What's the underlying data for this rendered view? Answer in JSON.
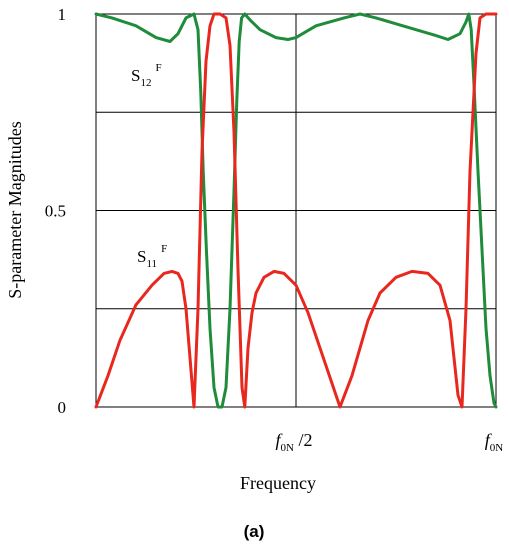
{
  "chart_data": {
    "type": "line",
    "xlabel": "Frequency",
    "ylabel": "S-parameter Magnitudes",
    "ylim": [
      0,
      1
    ],
    "xlim": [
      0,
      1
    ],
    "yticks": [
      {
        "value": 0,
        "label": "0"
      },
      {
        "value": 0.5,
        "label": "0.5"
      },
      {
        "value": 1,
        "label": "1"
      }
    ],
    "xticks": [
      {
        "value": 0.5,
        "main": "f",
        "sub": "0N",
        "suffix": " /2"
      },
      {
        "value": 1.0,
        "main": "f",
        "sub": "0N",
        "suffix": ""
      }
    ],
    "grid": true,
    "caption": "(a)",
    "colors": {
      "S12": "#1e8c3a",
      "S11": "#e8281e"
    },
    "annotations": {
      "s12": {
        "main": "S",
        "sub": "12",
        "sup": "F"
      },
      "s11": {
        "main": "S",
        "sub": "11",
        "sup": "F"
      }
    },
    "series": [
      {
        "key": "S12",
        "x": [
          0.0,
          0.04,
          0.1,
          0.15,
          0.185,
          0.205,
          0.225,
          0.245,
          0.255,
          0.262,
          0.268,
          0.276,
          0.285,
          0.295,
          0.305,
          0.315,
          0.325,
          0.335,
          0.345,
          0.352,
          0.358,
          0.364,
          0.372,
          0.385,
          0.41,
          0.45,
          0.48,
          0.5,
          0.55,
          0.62,
          0.66,
          0.7,
          0.75,
          0.8,
          0.85,
          0.88,
          0.91,
          0.925,
          0.932,
          0.938,
          0.945,
          0.955,
          0.965,
          0.975,
          0.985,
          0.995,
          1.0
        ],
        "y": [
          1.0,
          0.99,
          0.97,
          0.94,
          0.93,
          0.95,
          0.99,
          1.0,
          0.96,
          0.8,
          0.6,
          0.4,
          0.2,
          0.05,
          0.0,
          0.0,
          0.05,
          0.25,
          0.55,
          0.78,
          0.93,
          0.99,
          1.0,
          0.985,
          0.96,
          0.94,
          0.935,
          0.94,
          0.97,
          0.99,
          1.0,
          0.99,
          0.975,
          0.96,
          0.945,
          0.935,
          0.95,
          0.98,
          1.0,
          0.96,
          0.82,
          0.6,
          0.4,
          0.2,
          0.08,
          0.01,
          0.0
        ]
      },
      {
        "key": "S11",
        "x": [
          0.0,
          0.03,
          0.06,
          0.1,
          0.14,
          0.17,
          0.19,
          0.205,
          0.215,
          0.225,
          0.245,
          0.255,
          0.265,
          0.275,
          0.285,
          0.295,
          0.31,
          0.325,
          0.335,
          0.345,
          0.355,
          0.365,
          0.372,
          0.38,
          0.39,
          0.4,
          0.42,
          0.445,
          0.47,
          0.5,
          0.53,
          0.57,
          0.61,
          0.64,
          0.66,
          0.68,
          0.71,
          0.75,
          0.79,
          0.83,
          0.86,
          0.885,
          0.905,
          0.915,
          0.925,
          0.935,
          0.95,
          0.96,
          0.975,
          0.985,
          0.995,
          1.0
        ],
        "y": [
          0.0,
          0.08,
          0.17,
          0.26,
          0.31,
          0.34,
          0.345,
          0.34,
          0.32,
          0.25,
          0.0,
          0.25,
          0.65,
          0.88,
          0.97,
          1.0,
          1.0,
          0.99,
          0.92,
          0.7,
          0.35,
          0.05,
          0.0,
          0.15,
          0.24,
          0.29,
          0.33,
          0.345,
          0.34,
          0.31,
          0.24,
          0.12,
          0.0,
          0.08,
          0.15,
          0.22,
          0.29,
          0.33,
          0.345,
          0.34,
          0.31,
          0.22,
          0.03,
          0.0,
          0.25,
          0.6,
          0.9,
          0.99,
          1.0,
          1.0,
          1.0,
          1.0
        ]
      }
    ]
  }
}
